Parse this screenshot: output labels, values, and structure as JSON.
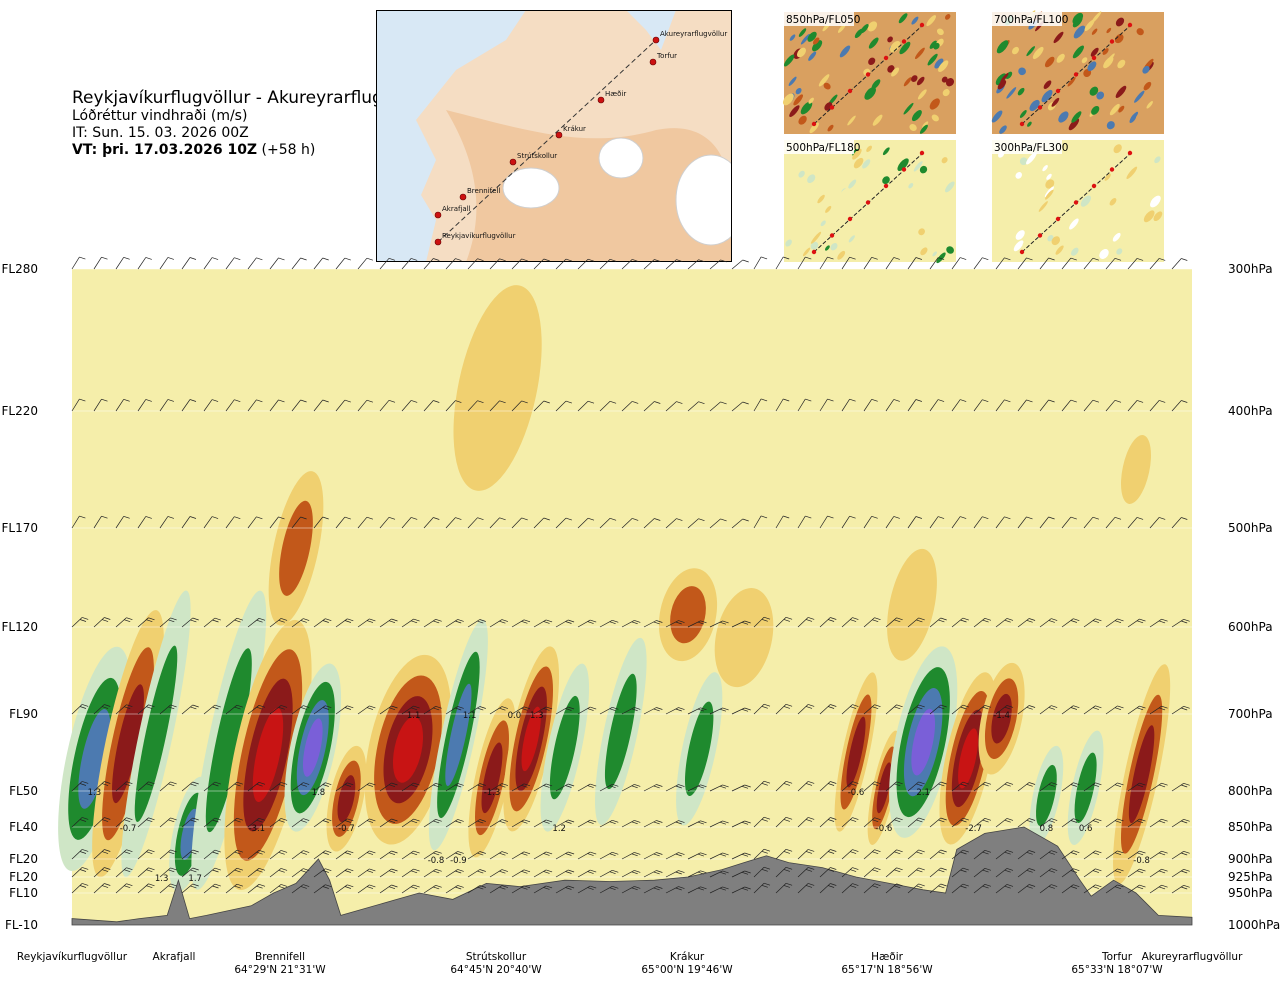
{
  "header": {
    "route": "Reykjavíkurflugvöllur - Akureyrarflugvöllur",
    "variable": "Lóðréttur vindhraði (m/s)",
    "issue_time": "IT: Sun. 15. 03. 2026 00Z",
    "valid_label": "VT: þri. 17.03.2026 10Z",
    "valid_offset": "(+58 h)"
  },
  "map": {
    "labels": [
      "Akureyrarflugvöllur",
      "Torfur",
      "Hæðir",
      "Krákur",
      "Strútskollur",
      "Brennifell",
      "Akrafjall",
      "Reykjavíkurflugvöllur"
    ]
  },
  "thumbnails": [
    {
      "label": "850hPa/FL050"
    },
    {
      "label": "700hPa/FL100"
    },
    {
      "label": "500hPa/FL180"
    },
    {
      "label": "300hPa/FL300"
    }
  ],
  "colors": {
    "strong_up": "#8b1a1a",
    "up": "#c2581a",
    "weak_up": "#f0d070",
    "neutral": "#f5eeaa",
    "weak_down": "#cfe6c6",
    "down": "#1f8a2e",
    "strong_down": "#4c7ab0",
    "very_strong_down": "#7a5fd8",
    "terrain": "#7f7f7f"
  },
  "chart_data": {
    "type": "heatmap",
    "title": "Lóðréttur vindhraði (m/s)",
    "flight_levels": [
      "FL280",
      "FL220",
      "FL170",
      "FL120",
      "FL90",
      "FL50",
      "FL40",
      "FL20",
      "FL20",
      "FL10",
      "FL-10"
    ],
    "pressure_levels": [
      "300hPa",
      "400hPa",
      "500hPa",
      "600hPa",
      "700hPa",
      "800hPa",
      "850hPa",
      "900hPa",
      "925hPa",
      "950hPa",
      "1000hPa"
    ],
    "pressure_values": [
      300,
      400,
      500,
      600,
      700,
      800,
      850,
      900,
      925,
      950,
      1000
    ],
    "ylim": [
      1000,
      300
    ],
    "waypoints": [
      {
        "name": "Reykjavíkurflugvöllur",
        "coord": ""
      },
      {
        "name": "Akrafjall",
        "coord": ""
      },
      {
        "name": "Brennifell",
        "coord": "64°29'N 21°31'W"
      },
      {
        "name": "Strútskollur",
        "coord": "64°45'N 20°40'W"
      },
      {
        "name": "Krákur",
        "coord": "65°00'N 19°46'W"
      },
      {
        "name": "Hæðir",
        "coord": "65°17'N 18°56'W"
      },
      {
        "name": "Torfur",
        "coord": "65°33'N 18°07'W"
      },
      {
        "name": "Akureyrarflugvöllur",
        "coord": ""
      }
    ],
    "annotations": [
      {
        "text": "1.3",
        "pressure": 800,
        "distance": 0.02
      },
      {
        "text": "-0.7",
        "pressure": 850,
        "distance": 0.05
      },
      {
        "text": "1.3",
        "pressure": 925,
        "distance": 0.08
      },
      {
        "text": "1.7",
        "pressure": 925,
        "distance": 0.11
      },
      {
        "text": "-3.1",
        "pressure": 850,
        "distance": 0.165
      },
      {
        "text": "1.8",
        "pressure": 800,
        "distance": 0.22
      },
      {
        "text": "-0.7",
        "pressure": 850,
        "distance": 0.245
      },
      {
        "text": "1.1",
        "pressure": 700,
        "distance": 0.305
      },
      {
        "text": "-0.8",
        "pressure": 900,
        "distance": 0.325
      },
      {
        "text": "-0.9",
        "pressure": 900,
        "distance": 0.345
      },
      {
        "text": "1.1",
        "pressure": 700,
        "distance": 0.355
      },
      {
        "text": "-1.3",
        "pressure": 800,
        "distance": 0.375
      },
      {
        "text": "0.0",
        "pressure": 700,
        "distance": 0.395
      },
      {
        "text": "1.3",
        "pressure": 700,
        "distance": 0.415
      },
      {
        "text": "1.2",
        "pressure": 850,
        "distance": 0.435
      },
      {
        "text": "-0.6",
        "pressure": 800,
        "distance": 0.7
      },
      {
        "text": "-0.6",
        "pressure": 850,
        "distance": 0.725
      },
      {
        "text": "2.1",
        "pressure": 800,
        "distance": 0.76
      },
      {
        "text": "-2.7",
        "pressure": 850,
        "distance": 0.805
      },
      {
        "text": "-1.4",
        "pressure": 700,
        "distance": 0.83
      },
      {
        "text": "0.8",
        "pressure": 850,
        "distance": 0.87
      },
      {
        "text": "0.6",
        "pressure": 850,
        "distance": 0.905
      },
      {
        "text": "-0.8",
        "pressure": 900,
        "distance": 0.955
      }
    ],
    "field_columns": [
      {
        "x": 0.02,
        "w": 0.025,
        "value": 2.5,
        "p_top": 620,
        "p_bot": 920
      },
      {
        "x": 0.05,
        "w": 0.02,
        "value": -2,
        "p_top": 580,
        "p_bot": 930
      },
      {
        "x": 0.075,
        "w": 0.015,
        "value": 1.5,
        "p_top": 560,
        "p_bot": 930
      },
      {
        "x": 0.105,
        "w": 0.015,
        "value": 2.5,
        "p_top": 780,
        "p_bot": 950
      },
      {
        "x": 0.14,
        "w": 0.018,
        "value": 1.5,
        "p_top": 560,
        "p_bot": 950
      },
      {
        "x": 0.175,
        "w": 0.03,
        "value": -3.5,
        "p_top": 590,
        "p_bot": 950
      },
      {
        "x": 0.215,
        "w": 0.02,
        "value": 3,
        "p_top": 640,
        "p_bot": 860
      },
      {
        "x": 0.245,
        "w": 0.015,
        "value": -2,
        "p_top": 740,
        "p_bot": 890
      },
      {
        "x": 0.3,
        "w": 0.035,
        "value": -3.5,
        "p_top": 630,
        "p_bot": 880
      },
      {
        "x": 0.345,
        "w": 0.015,
        "value": 2,
        "p_top": 590,
        "p_bot": 890
      },
      {
        "x": 0.375,
        "w": 0.015,
        "value": -2.5,
        "p_top": 680,
        "p_bot": 900
      },
      {
        "x": 0.41,
        "w": 0.018,
        "value": -3,
        "p_top": 620,
        "p_bot": 860
      },
      {
        "x": 0.44,
        "w": 0.015,
        "value": 1.5,
        "p_top": 640,
        "p_bot": 860
      },
      {
        "x": 0.49,
        "w": 0.015,
        "value": 1.5,
        "p_top": 610,
        "p_bot": 850
      },
      {
        "x": 0.56,
        "w": 0.015,
        "value": 1.5,
        "p_top": 650,
        "p_bot": 850
      },
      {
        "x": 0.7,
        "w": 0.012,
        "value": -2,
        "p_top": 650,
        "p_bot": 860
      },
      {
        "x": 0.725,
        "w": 0.01,
        "value": -2,
        "p_top": 720,
        "p_bot": 880
      },
      {
        "x": 0.76,
        "w": 0.025,
        "value": 3,
        "p_top": 620,
        "p_bot": 870
      },
      {
        "x": 0.8,
        "w": 0.02,
        "value": -3.5,
        "p_top": 650,
        "p_bot": 880
      },
      {
        "x": 0.83,
        "w": 0.018,
        "value": -2.5,
        "p_top": 640,
        "p_bot": 780
      },
      {
        "x": 0.87,
        "w": 0.012,
        "value": 1.5,
        "p_top": 740,
        "p_bot": 880
      },
      {
        "x": 0.905,
        "w": 0.012,
        "value": 1.5,
        "p_top": 720,
        "p_bot": 880
      },
      {
        "x": 0.955,
        "w": 0.015,
        "value": -2,
        "p_top": 640,
        "p_bot": 940
      },
      {
        "x": 0.2,
        "w": 0.02,
        "value": -1,
        "p_top": 450,
        "p_bot": 600
      },
      {
        "x": 0.38,
        "w": 0.035,
        "value": -0.7,
        "p_top": 310,
        "p_bot": 470
      },
      {
        "x": 0.55,
        "w": 0.025,
        "value": -1,
        "p_top": 540,
        "p_bot": 640
      },
      {
        "x": 0.6,
        "w": 0.025,
        "value": -0.7,
        "p_top": 560,
        "p_bot": 670
      },
      {
        "x": 0.75,
        "w": 0.02,
        "value": -0.6,
        "p_top": 520,
        "p_bot": 640
      },
      {
        "x": 0.95,
        "w": 0.012,
        "value": -0.6,
        "p_top": 420,
        "p_bot": 480
      }
    ],
    "terrain_profile": [
      {
        "d": 0.0,
        "p": 990
      },
      {
        "d": 0.04,
        "p": 995
      },
      {
        "d": 0.06,
        "p": 990
      },
      {
        "d": 0.085,
        "p": 985
      },
      {
        "d": 0.095,
        "p": 930
      },
      {
        "d": 0.105,
        "p": 990
      },
      {
        "d": 0.12,
        "p": 985
      },
      {
        "d": 0.16,
        "p": 970
      },
      {
        "d": 0.18,
        "p": 950
      },
      {
        "d": 0.2,
        "p": 935
      },
      {
        "d": 0.22,
        "p": 900
      },
      {
        "d": 0.23,
        "p": 930
      },
      {
        "d": 0.24,
        "p": 985
      },
      {
        "d": 0.26,
        "p": 975
      },
      {
        "d": 0.29,
        "p": 960
      },
      {
        "d": 0.31,
        "p": 950
      },
      {
        "d": 0.34,
        "p": 960
      },
      {
        "d": 0.37,
        "p": 935
      },
      {
        "d": 0.4,
        "p": 940
      },
      {
        "d": 0.44,
        "p": 930
      },
      {
        "d": 0.48,
        "p": 932
      },
      {
        "d": 0.52,
        "p": 930
      },
      {
        "d": 0.55,
        "p": 925
      },
      {
        "d": 0.58,
        "p": 915
      },
      {
        "d": 0.6,
        "p": 905
      },
      {
        "d": 0.62,
        "p": 895
      },
      {
        "d": 0.64,
        "p": 905
      },
      {
        "d": 0.67,
        "p": 912
      },
      {
        "d": 0.7,
        "p": 925
      },
      {
        "d": 0.73,
        "p": 935
      },
      {
        "d": 0.76,
        "p": 945
      },
      {
        "d": 0.78,
        "p": 950
      },
      {
        "d": 0.79,
        "p": 885
      },
      {
        "d": 0.815,
        "p": 860
      },
      {
        "d": 0.85,
        "p": 850
      },
      {
        "d": 0.88,
        "p": 880
      },
      {
        "d": 0.9,
        "p": 930
      },
      {
        "d": 0.91,
        "p": 955
      },
      {
        "d": 0.93,
        "p": 930
      },
      {
        "d": 0.95,
        "p": 950
      },
      {
        "d": 0.97,
        "p": 985
      },
      {
        "d": 1.0,
        "p": 988
      }
    ]
  }
}
